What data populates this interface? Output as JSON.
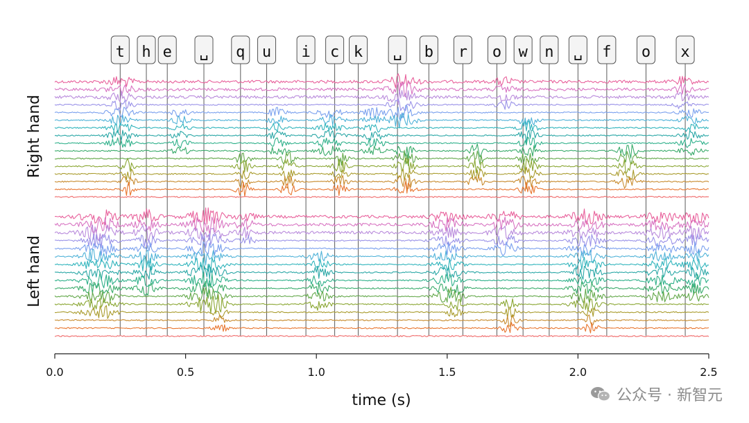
{
  "chart_data": {
    "type": "line",
    "title": "",
    "xlabel": "time (s)",
    "ylabel_groups": [
      "Right hand",
      "Left hand"
    ],
    "xlim": [
      0.0,
      2.5
    ],
    "xticks": [
      0.0,
      0.5,
      1.0,
      1.5,
      2.0,
      2.5
    ],
    "xtick_labels": [
      "0.0",
      "0.5",
      "1.0",
      "1.5",
      "2.0",
      "2.5"
    ],
    "channels_per_group": 16,
    "series_colors": [
      "#e8609b",
      "#d874c2",
      "#b98bdc",
      "#9a92e8",
      "#7aa0ee",
      "#4fb2d8",
      "#30b4bc",
      "#2aa7a6",
      "#2eb08a",
      "#3aab6b",
      "#63a84a",
      "#8aa632",
      "#a99b2c",
      "#c78a2c",
      "#e8762f",
      "#f06a6a"
    ],
    "key_events": [
      {
        "char": "t",
        "time": 0.25
      },
      {
        "char": "h",
        "time": 0.35
      },
      {
        "char": "e",
        "time": 0.43
      },
      {
        "char": "␣",
        "time": 0.57
      },
      {
        "char": "q",
        "time": 0.71
      },
      {
        "char": "u",
        "time": 0.81
      },
      {
        "char": "i",
        "time": 0.96
      },
      {
        "char": "c",
        "time": 1.07
      },
      {
        "char": "k",
        "time": 1.16
      },
      {
        "char": "␣",
        "time": 1.31
      },
      {
        "char": "b",
        "time": 1.43
      },
      {
        "char": "r",
        "time": 1.56
      },
      {
        "char": "o",
        "time": 1.69
      },
      {
        "char": "w",
        "time": 1.79
      },
      {
        "char": "n",
        "time": 1.89
      },
      {
        "char": "␣",
        "time": 2.0
      },
      {
        "char": "f",
        "time": 2.11
      },
      {
        "char": "o",
        "time": 2.26
      },
      {
        "char": "x",
        "time": 2.41
      }
    ],
    "activity_bursts": {
      "right": [
        {
          "center": 0.25,
          "width": 0.07,
          "channels": [
            0,
            8
          ],
          "amp": 1.0
        },
        {
          "center": 0.28,
          "width": 0.04,
          "channels": [
            11,
            14
          ],
          "amp": 1.3
        },
        {
          "center": 0.48,
          "width": 0.05,
          "channels": [
            4,
            9
          ],
          "amp": 0.8
        },
        {
          "center": 0.72,
          "width": 0.04,
          "channels": [
            10,
            14
          ],
          "amp": 1.4
        },
        {
          "center": 0.85,
          "width": 0.05,
          "channels": [
            4,
            9
          ],
          "amp": 0.9
        },
        {
          "center": 0.89,
          "width": 0.04,
          "channels": [
            10,
            14
          ],
          "amp": 1.3
        },
        {
          "center": 1.05,
          "width": 0.07,
          "channels": [
            4,
            9
          ],
          "amp": 1.0
        },
        {
          "center": 1.09,
          "width": 0.04,
          "channels": [
            10,
            14
          ],
          "amp": 1.3
        },
        {
          "center": 1.22,
          "width": 0.06,
          "channels": [
            4,
            9
          ],
          "amp": 0.9
        },
        {
          "center": 1.33,
          "width": 0.07,
          "channels": [
            0,
            5
          ],
          "amp": 1.6
        },
        {
          "center": 1.34,
          "width": 0.05,
          "channels": [
            9,
            14
          ],
          "amp": 1.5
        },
        {
          "center": 1.61,
          "width": 0.04,
          "channels": [
            9,
            13
          ],
          "amp": 1.4
        },
        {
          "center": 1.81,
          "width": 0.05,
          "channels": [
            5,
            14
          ],
          "amp": 1.4
        },
        {
          "center": 1.72,
          "width": 0.05,
          "channels": [
            0,
            3
          ],
          "amp": 0.9
        },
        {
          "center": 2.19,
          "width": 0.05,
          "channels": [
            9,
            13
          ],
          "amp": 1.5
        },
        {
          "center": 2.43,
          "width": 0.06,
          "channels": [
            4,
            9
          ],
          "amp": 0.9
        },
        {
          "center": 2.4,
          "width": 0.05,
          "channels": [
            0,
            3
          ],
          "amp": 0.8
        }
      ],
      "left": [
        {
          "center": 0.17,
          "width": 0.09,
          "channels": [
            0,
            12
          ],
          "amp": 1.5
        },
        {
          "center": 0.35,
          "width": 0.06,
          "channels": [
            0,
            9
          ],
          "amp": 1.3
        },
        {
          "center": 0.58,
          "width": 0.09,
          "channels": [
            0,
            11
          ],
          "amp": 1.6
        },
        {
          "center": 0.63,
          "width": 0.04,
          "channels": [
            11,
            14
          ],
          "amp": 1.0
        },
        {
          "center": 0.73,
          "width": 0.05,
          "channels": [
            0,
            3
          ],
          "amp": 0.9
        },
        {
          "center": 1.01,
          "width": 0.06,
          "channels": [
            5,
            11
          ],
          "amp": 1.1
        },
        {
          "center": 1.5,
          "width": 0.08,
          "channels": [
            0,
            10
          ],
          "amp": 1.1
        },
        {
          "center": 1.53,
          "width": 0.04,
          "channels": [
            9,
            12
          ],
          "amp": 1.3
        },
        {
          "center": 1.72,
          "width": 0.07,
          "channels": [
            0,
            4
          ],
          "amp": 1.2
        },
        {
          "center": 1.74,
          "width": 0.04,
          "channels": [
            11,
            14
          ],
          "amp": 1.2
        },
        {
          "center": 2.03,
          "width": 0.08,
          "channels": [
            0,
            11
          ],
          "amp": 1.3
        },
        {
          "center": 2.05,
          "width": 0.04,
          "channels": [
            12,
            14
          ],
          "amp": 1.0
        },
        {
          "center": 2.32,
          "width": 0.08,
          "channels": [
            0,
            10
          ],
          "amp": 1.1
        },
        {
          "center": 2.45,
          "width": 0.06,
          "channels": [
            0,
            10
          ],
          "amp": 1.2
        }
      ]
    }
  },
  "watermark": {
    "text": "公众号 · 新智元",
    "icon": "wechat-icon"
  }
}
